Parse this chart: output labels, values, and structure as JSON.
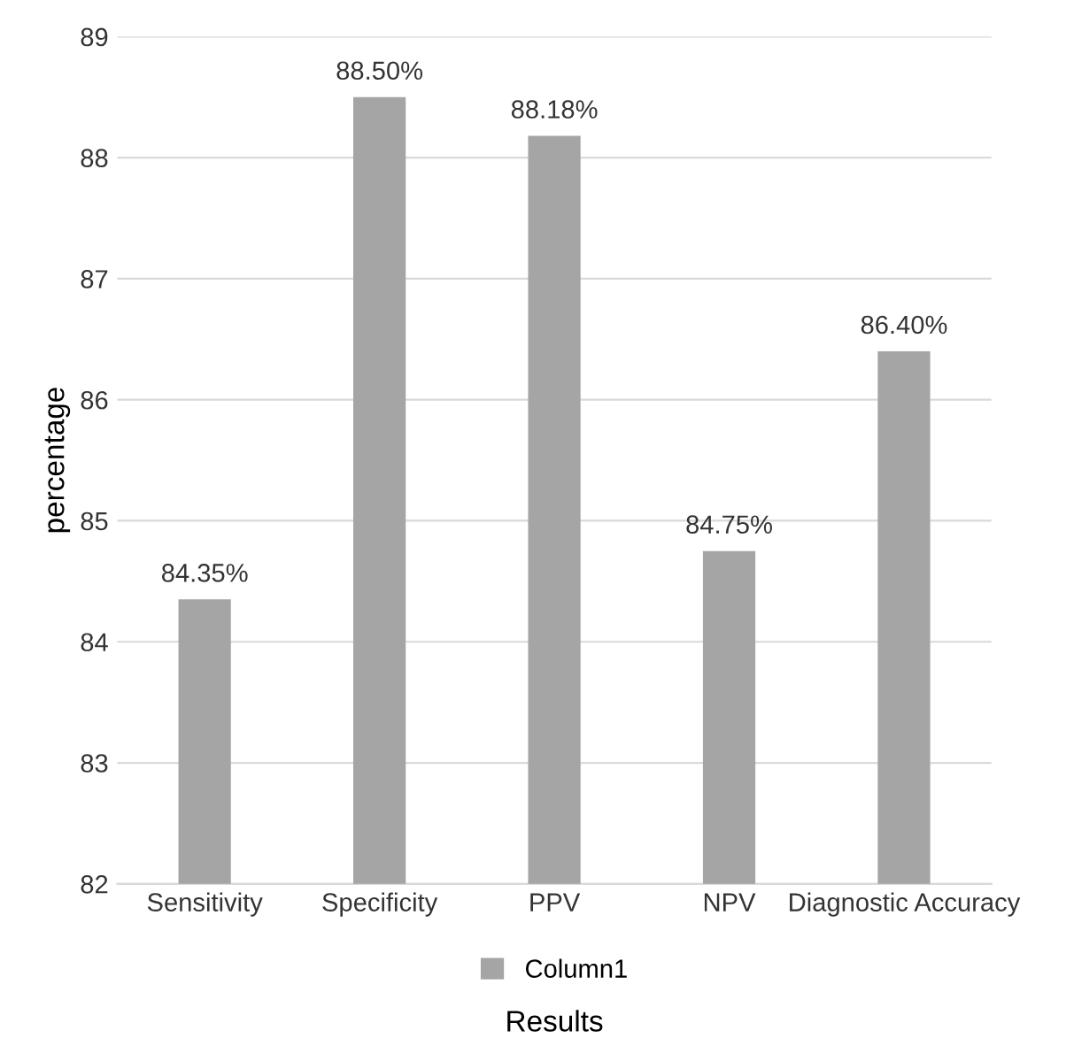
{
  "chart_data": {
    "type": "bar",
    "xlabel": "Results",
    "ylabel": "percentage",
    "categories": [
      "Sensitivity",
      "Specificity",
      "PPV",
      "NPV",
      "Diagnostic Accuracy"
    ],
    "series": [
      {
        "name": "Column1",
        "color": "#a5a5a5",
        "values": [
          84.35,
          88.5,
          88.18,
          84.75,
          86.4
        ],
        "value_labels": [
          "84.35%",
          "88.50%",
          "88.18%",
          "84.75%",
          "86.40%"
        ]
      }
    ],
    "ylim": [
      82,
      89
    ],
    "yticks": [
      82,
      83,
      84,
      85,
      86,
      87,
      88,
      89
    ],
    "grid": "y",
    "legend": "bottom"
  }
}
